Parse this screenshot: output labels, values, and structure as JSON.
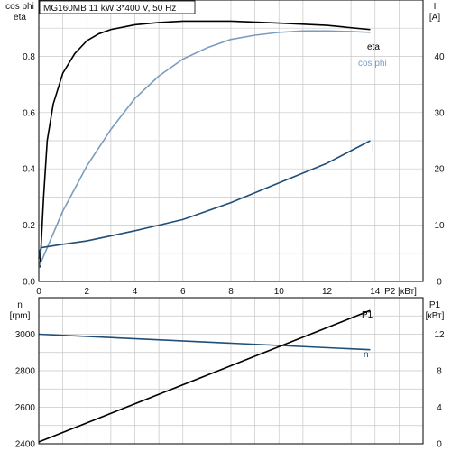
{
  "title": "MG160MB   11 kW   3*400 V, 50 Hz",
  "colors": {
    "eta": "#000000",
    "cosphi": "#7a9cbe",
    "current": "#1f4e79",
    "speed": "#1f4e79",
    "p1": "#000000",
    "grid": "#c8c8c8",
    "frame": "#000000"
  },
  "chart_data": [
    {
      "type": "line",
      "panel": "top",
      "title": "MG160MB   11 kW   3*400 V, 50 Hz",
      "xlabel": "P2 [кВт]",
      "x_ticks": [
        0,
        2,
        4,
        6,
        8,
        10,
        12,
        14
      ],
      "xlim": [
        0,
        16
      ],
      "left_axis": {
        "label_lines": [
          "cos phi",
          "eta"
        ],
        "ylim": [
          0,
          1.0
        ],
        "ticks": [
          0.0,
          0.2,
          0.4,
          0.6,
          0.8
        ]
      },
      "right_axis": {
        "label_lines": [
          "I",
          "[A]"
        ],
        "ylim": [
          0,
          50
        ],
        "ticks": [
          0,
          10,
          20,
          30,
          40
        ]
      },
      "grid": true,
      "series": [
        {
          "name": "eta",
          "axis": "left",
          "color": "#000000",
          "points": [
            [
              0.05,
              0.05
            ],
            [
              0.2,
              0.3
            ],
            [
              0.35,
              0.5
            ],
            [
              0.6,
              0.63
            ],
            [
              1.0,
              0.74
            ],
            [
              1.5,
              0.81
            ],
            [
              2.0,
              0.855
            ],
            [
              2.5,
              0.88
            ],
            [
              3.0,
              0.895
            ],
            [
              4.0,
              0.912
            ],
            [
              5.0,
              0.92
            ],
            [
              6.0,
              0.925
            ],
            [
              8.0,
              0.925
            ],
            [
              10.0,
              0.918
            ],
            [
              12.0,
              0.91
            ],
            [
              13.8,
              0.895
            ]
          ]
        },
        {
          "name": "cos phi",
          "axis": "left",
          "color": "#7a9cbe",
          "points": [
            [
              0.0,
              0.05
            ],
            [
              0.5,
              0.15
            ],
            [
              1.0,
              0.25
            ],
            [
              2.0,
              0.41
            ],
            [
              3.0,
              0.54
            ],
            [
              4.0,
              0.65
            ],
            [
              5.0,
              0.73
            ],
            [
              6.0,
              0.79
            ],
            [
              7.0,
              0.83
            ],
            [
              8.0,
              0.86
            ],
            [
              9.0,
              0.875
            ],
            [
              10.0,
              0.885
            ],
            [
              11.0,
              0.89
            ],
            [
              12.0,
              0.89
            ],
            [
              13.0,
              0.888
            ],
            [
              13.8,
              0.885
            ]
          ]
        },
        {
          "name": "I",
          "axis": "right",
          "color": "#1f4e79",
          "points": [
            [
              0.0,
              4.0
            ],
            [
              0.05,
              5.5
            ],
            [
              0.1,
              6.0
            ],
            [
              1.0,
              6.6
            ],
            [
              2.0,
              7.2
            ],
            [
              4.0,
              9.0
            ],
            [
              6.0,
              11.0
            ],
            [
              8.0,
              14.0
            ],
            [
              10.0,
              17.5
            ],
            [
              12.0,
              21.0
            ],
            [
              13.8,
              25.0
            ]
          ]
        }
      ]
    },
    {
      "type": "line",
      "panel": "bottom",
      "x_ticks": [
        0,
        2,
        4,
        6,
        8,
        10,
        12,
        14
      ],
      "xlim": [
        0,
        16
      ],
      "left_axis": {
        "label_lines": [
          "n",
          "[rpm]"
        ],
        "ylim": [
          2400,
          3200
        ],
        "ticks": [
          2400,
          2600,
          2800,
          3000
        ]
      },
      "right_axis": {
        "label_lines": [
          "P1",
          "[кВт]"
        ],
        "ylim": [
          0,
          16
        ],
        "ticks": [
          0,
          4,
          8,
          12
        ]
      },
      "grid": true,
      "series": [
        {
          "name": "n",
          "axis": "left",
          "color": "#1f4e79",
          "points": [
            [
              0.0,
              3000
            ],
            [
              13.8,
              2915
            ]
          ]
        },
        {
          "name": "P1",
          "axis": "right",
          "color": "#000000",
          "points": [
            [
              0.0,
              0.2
            ],
            [
              13.8,
              14.6
            ]
          ]
        }
      ]
    }
  ]
}
